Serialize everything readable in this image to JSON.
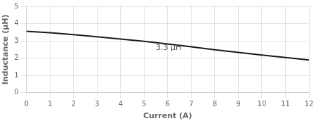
{
  "chart_data": {
    "type": "line",
    "xlabel": "Current (A)",
    "ylabel": "Inductance (μH)",
    "x": [
      0,
      1,
      2,
      3,
      4,
      5,
      6,
      7,
      8,
      9,
      10,
      11,
      12
    ],
    "values": [
      3.55,
      3.47,
      3.36,
      3.24,
      3.11,
      2.97,
      2.82,
      2.66,
      2.49,
      2.33,
      2.18,
      2.04,
      1.9
    ],
    "color": "#1a1a1a",
    "xlim": [
      0,
      12
    ],
    "ylim": [
      0,
      5
    ],
    "xticks": [
      0,
      1,
      2,
      3,
      4,
      5,
      6,
      7,
      8,
      9,
      10,
      11,
      12
    ],
    "yticks": [
      0,
      1,
      2,
      3,
      4,
      5
    ],
    "grid": true,
    "annotations": [
      {
        "text": "3.3 μH",
        "x": 5.5,
        "y": 2.6
      }
    ]
  }
}
